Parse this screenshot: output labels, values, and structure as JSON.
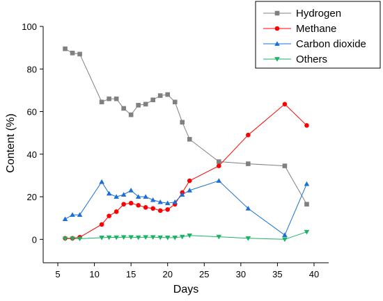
{
  "chart_data": {
    "type": "line",
    "xlabel": "Days",
    "ylabel": "Content (%)",
    "xlim": [
      3,
      42
    ],
    "ylim": [
      -11,
      100
    ],
    "x_ticks": [
      5,
      10,
      15,
      20,
      25,
      30,
      35,
      40
    ],
    "y_ticks": [
      0,
      20,
      40,
      60,
      80,
      100
    ],
    "grid": false,
    "legend_position": "top-right",
    "series": [
      {
        "name": "Hydrogen",
        "color": "#808080",
        "marker": "square",
        "x": [
          6,
          7,
          8,
          11,
          12,
          13,
          14,
          15,
          16,
          17,
          18,
          19,
          20,
          21,
          22,
          23,
          27,
          31,
          36,
          39
        ],
        "y": [
          89.5,
          87.5,
          87,
          64.5,
          66,
          66,
          61.5,
          58.5,
          63,
          63.5,
          65.5,
          67.5,
          68,
          64.5,
          55,
          47,
          36.5,
          35.5,
          34.5,
          16.5
        ]
      },
      {
        "name": "Methane",
        "color": "#ff0000",
        "marker": "circle",
        "x": [
          6,
          7,
          8,
          11,
          12,
          13,
          14,
          15,
          16,
          17,
          18,
          19,
          20,
          21,
          22,
          23,
          27,
          31,
          36,
          39
        ],
        "y": [
          0.5,
          0.5,
          1,
          7,
          11,
          13,
          16.5,
          17,
          16,
          15,
          14.5,
          13.5,
          14,
          16.5,
          22,
          27.5,
          34.5,
          49,
          63.5,
          53.5
        ]
      },
      {
        "name": "Carbon dioxide",
        "color": "#1a6fd6",
        "marker": "triangle-up",
        "x": [
          6,
          7,
          8,
          11,
          12,
          13,
          14,
          15,
          16,
          17,
          18,
          19,
          20,
          21,
          22,
          23,
          27,
          31,
          36,
          39
        ],
        "y": [
          9.5,
          11.5,
          11.5,
          27,
          21.5,
          20,
          21,
          23,
          20,
          20,
          18.5,
          17.5,
          17,
          17.5,
          21,
          23,
          27.5,
          14.5,
          2,
          26
        ]
      },
      {
        "name": "Others",
        "color": "#1bb366",
        "marker": "triangle-down",
        "x": [
          6,
          7,
          8,
          11,
          12,
          13,
          14,
          15,
          16,
          17,
          18,
          19,
          20,
          21,
          22,
          23,
          27,
          31,
          36,
          39
        ],
        "y": [
          0.3,
          0.3,
          0.3,
          0.8,
          0.9,
          0.9,
          1,
          1,
          0.9,
          1,
          1,
          0.9,
          0.8,
          0.8,
          1.2,
          1.8,
          1.2,
          0.5,
          0,
          3.5
        ]
      }
    ]
  }
}
